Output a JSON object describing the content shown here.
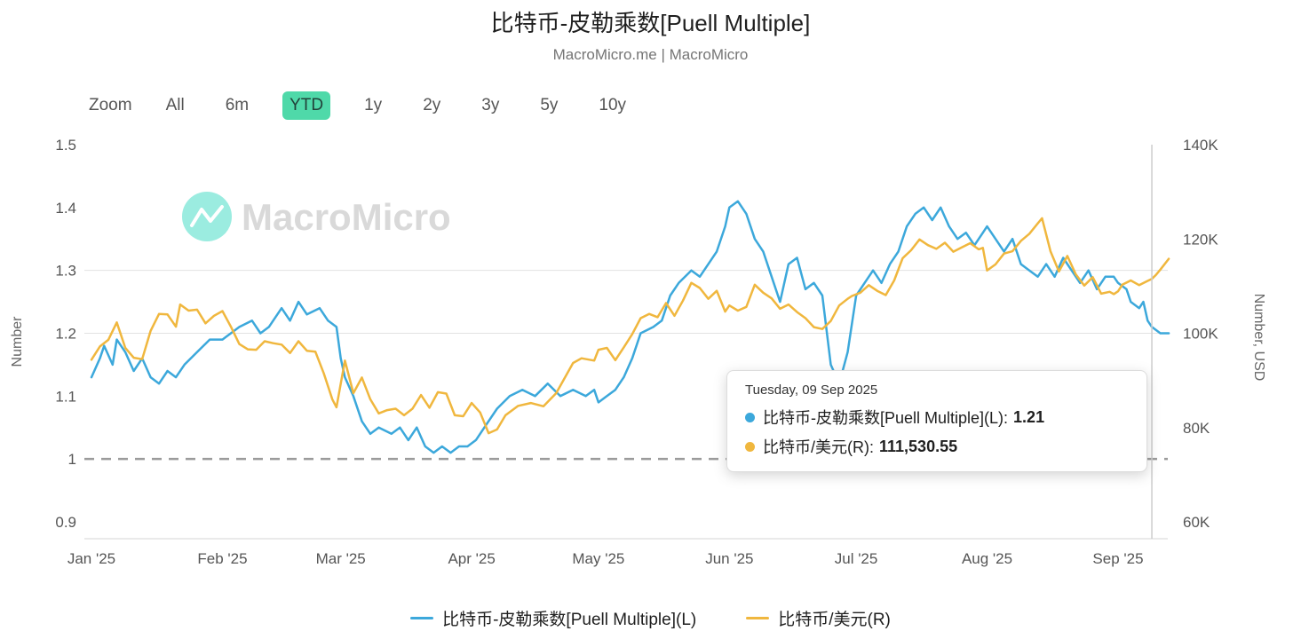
{
  "page": {
    "title": "比特币-皮勒乘数[Puell Multiple]",
    "subtitle": "MacroMicro.me | MacroMicro"
  },
  "range_selector": {
    "zoom_label": "Zoom",
    "buttons": [
      "All",
      "6m",
      "YTD",
      "1y",
      "2y",
      "3y",
      "5y",
      "10y"
    ],
    "selected": "YTD",
    "selected_color": "#4fd9a9"
  },
  "watermark": {
    "text": "MacroMicro",
    "logo_color": "#49dcc6",
    "text_color": "#d9d9d9"
  },
  "tooltip": {
    "date": "Tuesday, 09 Sep 2025",
    "rows": [
      {
        "label": "比特币-皮勒乘数[Puell Multiple](L):",
        "value": "1.21",
        "color": "#3CA8DB"
      },
      {
        "label": "比特币/美元(R):",
        "value": "111,530.55",
        "color": "#F0B73E"
      }
    ]
  },
  "legend": [
    {
      "label": "比特币-皮勒乘数[Puell Multiple](L)",
      "color": "#3CA8DB"
    },
    {
      "label": "比特币/美元(R)",
      "color": "#F0B73E"
    }
  ],
  "chart_data": {
    "type": "line",
    "title": "比特币-皮勒乘数[Puell Multiple]",
    "source": "MacroMicro.me | MacroMicro",
    "x_unit": "days since 2025-01-01",
    "x_axis": {
      "tick_labels": [
        "Jan '25",
        "Feb '25",
        "Mar '25",
        "Apr '25",
        "May '25",
        "Jun '25",
        "Jul '25",
        "Aug '25",
        "Sep '25"
      ],
      "tick_days": [
        0,
        31,
        59,
        90,
        120,
        151,
        181,
        212,
        243
      ],
      "max_day": 255
    },
    "y_left": {
      "label": "Number",
      "min": 0.9,
      "max": 1.5,
      "ticks": [
        0.9,
        1,
        1.1,
        1.2,
        1.3,
        1.4,
        1.5
      ],
      "gridlines": [
        1.2,
        1.3
      ],
      "baseline": 1
    },
    "y_right": {
      "label": "Number, USD",
      "min": 60000,
      "max": 140000,
      "ticks": [
        60000,
        80000,
        100000,
        120000,
        140000
      ]
    },
    "crosshair_day": 251,
    "hover_point": {
      "date": "Tuesday, 09 Sep 2025",
      "puell_multiple": 1.21,
      "btc_usd": 111530.55
    },
    "series": [
      {
        "name": "比特币-皮勒乘数[Puell Multiple](L)",
        "axis": "left",
        "color": "#3CA8DB",
        "points": [
          [
            0,
            1.13
          ],
          [
            2,
            1.16
          ],
          [
            3,
            1.18
          ],
          [
            5,
            1.15
          ],
          [
            6,
            1.19
          ],
          [
            8,
            1.17
          ],
          [
            10,
            1.14
          ],
          [
            12,
            1.16
          ],
          [
            14,
            1.13
          ],
          [
            16,
            1.12
          ],
          [
            18,
            1.14
          ],
          [
            20,
            1.13
          ],
          [
            22,
            1.15
          ],
          [
            25,
            1.17
          ],
          [
            28,
            1.19
          ],
          [
            31,
            1.19
          ],
          [
            33,
            1.2
          ],
          [
            35,
            1.21
          ],
          [
            38,
            1.22
          ],
          [
            40,
            1.2
          ],
          [
            42,
            1.21
          ],
          [
            45,
            1.24
          ],
          [
            47,
            1.22
          ],
          [
            49,
            1.25
          ],
          [
            51,
            1.23
          ],
          [
            54,
            1.24
          ],
          [
            56,
            1.22
          ],
          [
            58,
            1.21
          ],
          [
            59,
            1.16
          ],
          [
            60,
            1.13
          ],
          [
            62,
            1.1
          ],
          [
            64,
            1.06
          ],
          [
            66,
            1.04
          ],
          [
            68,
            1.05
          ],
          [
            71,
            1.04
          ],
          [
            73,
            1.05
          ],
          [
            75,
            1.03
          ],
          [
            77,
            1.05
          ],
          [
            79,
            1.02
          ],
          [
            81,
            1.01
          ],
          [
            83,
            1.02
          ],
          [
            85,
            1.01
          ],
          [
            87,
            1.02
          ],
          [
            89,
            1.02
          ],
          [
            91,
            1.03
          ],
          [
            93,
            1.05
          ],
          [
            96,
            1.08
          ],
          [
            99,
            1.1
          ],
          [
            102,
            1.11
          ],
          [
            105,
            1.1
          ],
          [
            108,
            1.12
          ],
          [
            111,
            1.1
          ],
          [
            114,
            1.11
          ],
          [
            117,
            1.1
          ],
          [
            119,
            1.11
          ],
          [
            120,
            1.09
          ],
          [
            122,
            1.1
          ],
          [
            124,
            1.11
          ],
          [
            126,
            1.13
          ],
          [
            128,
            1.16
          ],
          [
            130,
            1.2
          ],
          [
            133,
            1.21
          ],
          [
            135,
            1.22
          ],
          [
            137,
            1.26
          ],
          [
            139,
            1.28
          ],
          [
            142,
            1.3
          ],
          [
            144,
            1.29
          ],
          [
            146,
            1.31
          ],
          [
            148,
            1.33
          ],
          [
            150,
            1.37
          ],
          [
            151,
            1.4
          ],
          [
            153,
            1.41
          ],
          [
            155,
            1.39
          ],
          [
            157,
            1.35
          ],
          [
            159,
            1.33
          ],
          [
            161,
            1.29
          ],
          [
            163,
            1.25
          ],
          [
            165,
            1.31
          ],
          [
            167,
            1.32
          ],
          [
            169,
            1.27
          ],
          [
            171,
            1.28
          ],
          [
            173,
            1.26
          ],
          [
            175,
            1.15
          ],
          [
            177,
            1.12
          ],
          [
            179,
            1.17
          ],
          [
            181,
            1.26
          ],
          [
            183,
            1.28
          ],
          [
            185,
            1.3
          ],
          [
            187,
            1.28
          ],
          [
            189,
            1.31
          ],
          [
            191,
            1.33
          ],
          [
            193,
            1.37
          ],
          [
            195,
            1.39
          ],
          [
            197,
            1.4
          ],
          [
            199,
            1.38
          ],
          [
            201,
            1.4
          ],
          [
            203,
            1.37
          ],
          [
            205,
            1.35
          ],
          [
            207,
            1.36
          ],
          [
            209,
            1.34
          ],
          [
            211,
            1.36
          ],
          [
            212,
            1.37
          ],
          [
            214,
            1.35
          ],
          [
            216,
            1.33
          ],
          [
            218,
            1.35
          ],
          [
            220,
            1.31
          ],
          [
            222,
            1.3
          ],
          [
            224,
            1.29
          ],
          [
            226,
            1.31
          ],
          [
            228,
            1.29
          ],
          [
            230,
            1.32
          ],
          [
            232,
            1.3
          ],
          [
            234,
            1.28
          ],
          [
            236,
            1.3
          ],
          [
            238,
            1.27
          ],
          [
            240,
            1.29
          ],
          [
            242,
            1.29
          ],
          [
            243,
            1.28
          ],
          [
            245,
            1.27
          ],
          [
            246,
            1.25
          ],
          [
            248,
            1.24
          ],
          [
            249,
            1.25
          ],
          [
            250,
            1.22
          ],
          [
            251,
            1.21
          ],
          [
            253,
            1.2
          ],
          [
            255,
            1.2
          ]
        ]
      },
      {
        "name": "比特币/美元(R)",
        "axis": "right",
        "color": "#F0B73E",
        "points": [
          [
            0,
            94400
          ],
          [
            2,
            97200
          ],
          [
            4,
            98600
          ],
          [
            6,
            102300
          ],
          [
            8,
            96900
          ],
          [
            10,
            94800
          ],
          [
            12,
            94500
          ],
          [
            14,
            100500
          ],
          [
            16,
            104100
          ],
          [
            18,
            104000
          ],
          [
            20,
            101400
          ],
          [
            21,
            106100
          ],
          [
            23,
            104800
          ],
          [
            25,
            105000
          ],
          [
            27,
            102100
          ],
          [
            29,
            103700
          ],
          [
            31,
            104700
          ],
          [
            33,
            101400
          ],
          [
            35,
            97700
          ],
          [
            37,
            96600
          ],
          [
            39,
            96500
          ],
          [
            41,
            98300
          ],
          [
            43,
            97900
          ],
          [
            45,
            97600
          ],
          [
            47,
            95800
          ],
          [
            49,
            98300
          ],
          [
            51,
            96300
          ],
          [
            53,
            96100
          ],
          [
            55,
            91500
          ],
          [
            57,
            86000
          ],
          [
            58,
            84300
          ],
          [
            60,
            94200
          ],
          [
            62,
            87300
          ],
          [
            64,
            90600
          ],
          [
            66,
            86000
          ],
          [
            68,
            83000
          ],
          [
            70,
            83700
          ],
          [
            72,
            84000
          ],
          [
            74,
            82600
          ],
          [
            76,
            84000
          ],
          [
            78,
            86900
          ],
          [
            80,
            84200
          ],
          [
            82,
            87500
          ],
          [
            84,
            87200
          ],
          [
            86,
            82600
          ],
          [
            88,
            82400
          ],
          [
            90,
            85200
          ],
          [
            92,
            83200
          ],
          [
            94,
            78800
          ],
          [
            96,
            79600
          ],
          [
            98,
            82600
          ],
          [
            101,
            84600
          ],
          [
            104,
            85200
          ],
          [
            107,
            84500
          ],
          [
            110,
            87300
          ],
          [
            112,
            90500
          ],
          [
            114,
            93700
          ],
          [
            116,
            94700
          ],
          [
            119,
            94200
          ],
          [
            120,
            96500
          ],
          [
            122,
            96900
          ],
          [
            124,
            94300
          ],
          [
            126,
            97000
          ],
          [
            128,
            99800
          ],
          [
            130,
            103200
          ],
          [
            132,
            104100
          ],
          [
            134,
            103400
          ],
          [
            136,
            106400
          ],
          [
            138,
            103700
          ],
          [
            140,
            106900
          ],
          [
            142,
            110700
          ],
          [
            144,
            109600
          ],
          [
            146,
            107300
          ],
          [
            148,
            109000
          ],
          [
            150,
            104600
          ],
          [
            151,
            105900
          ],
          [
            153,
            104800
          ],
          [
            155,
            105600
          ],
          [
            157,
            110300
          ],
          [
            159,
            108600
          ],
          [
            161,
            107400
          ],
          [
            163,
            105200
          ],
          [
            165,
            106100
          ],
          [
            167,
            104500
          ],
          [
            169,
            103200
          ],
          [
            171,
            101300
          ],
          [
            173,
            100900
          ],
          [
            175,
            102600
          ],
          [
            177,
            105900
          ],
          [
            179,
            107300
          ],
          [
            180,
            107900
          ],
          [
            182,
            108600
          ],
          [
            184,
            110200
          ],
          [
            186,
            109000
          ],
          [
            188,
            108100
          ],
          [
            190,
            111200
          ],
          [
            192,
            115900
          ],
          [
            194,
            117600
          ],
          [
            196,
            119900
          ],
          [
            198,
            118700
          ],
          [
            200,
            117900
          ],
          [
            202,
            119200
          ],
          [
            204,
            117300
          ],
          [
            206,
            118200
          ],
          [
            208,
            119100
          ],
          [
            210,
            117800
          ],
          [
            211,
            118100
          ],
          [
            212,
            113300
          ],
          [
            214,
            114600
          ],
          [
            216,
            116900
          ],
          [
            218,
            117400
          ],
          [
            220,
            119600
          ],
          [
            222,
            121100
          ],
          [
            224,
            123300
          ],
          [
            225,
            124400
          ],
          [
            227,
            117400
          ],
          [
            229,
            113100
          ],
          [
            231,
            116400
          ],
          [
            233,
            112500
          ],
          [
            235,
            110100
          ],
          [
            237,
            111900
          ],
          [
            239,
            108400
          ],
          [
            241,
            108800
          ],
          [
            242,
            108300
          ],
          [
            243,
            108900
          ],
          [
            244,
            110300
          ],
          [
            246,
            111200
          ],
          [
            248,
            110200
          ],
          [
            250,
            111100
          ],
          [
            251,
            111530.55
          ],
          [
            252,
            112400
          ],
          [
            253,
            113500
          ],
          [
            255,
            115800
          ]
        ]
      }
    ]
  }
}
